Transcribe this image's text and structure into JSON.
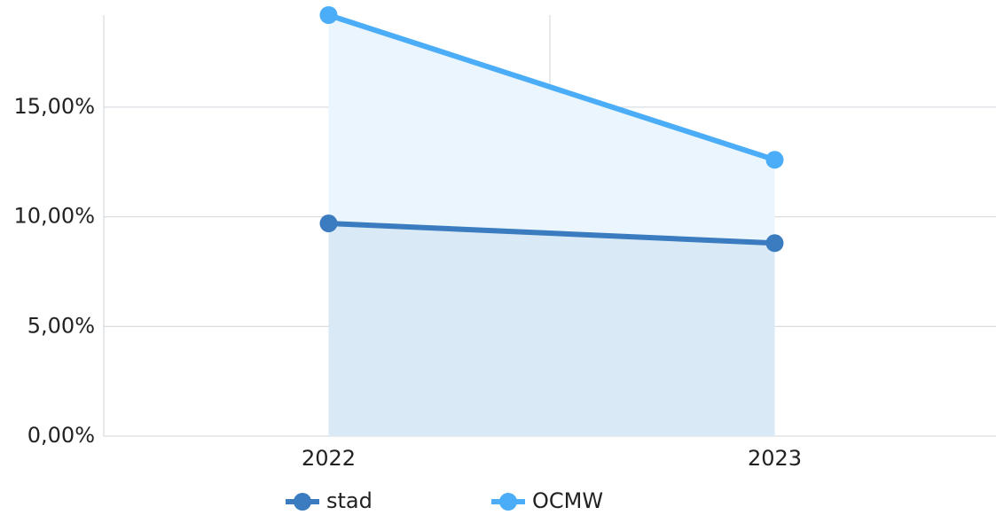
{
  "chart_data": {
    "type": "line",
    "categories": [
      "2022",
      "2023"
    ],
    "series": [
      {
        "name": "stad",
        "color": "#3b7bbf",
        "values": [
          9.7,
          8.8
        ]
      },
      {
        "name": "OCMW",
        "color": "#4badf7",
        "values": [
          19.2,
          12.6
        ]
      }
    ],
    "ylim": [
      0,
      19.2
    ],
    "yticks": [
      {
        "value": 0,
        "label": "0,00%"
      },
      {
        "value": 5,
        "label": "5,00%"
      },
      {
        "value": 10,
        "label": "10,00%"
      },
      {
        "value": 15,
        "label": "15,00%"
      }
    ],
    "grid": true,
    "area": true,
    "legend": "bottom"
  }
}
